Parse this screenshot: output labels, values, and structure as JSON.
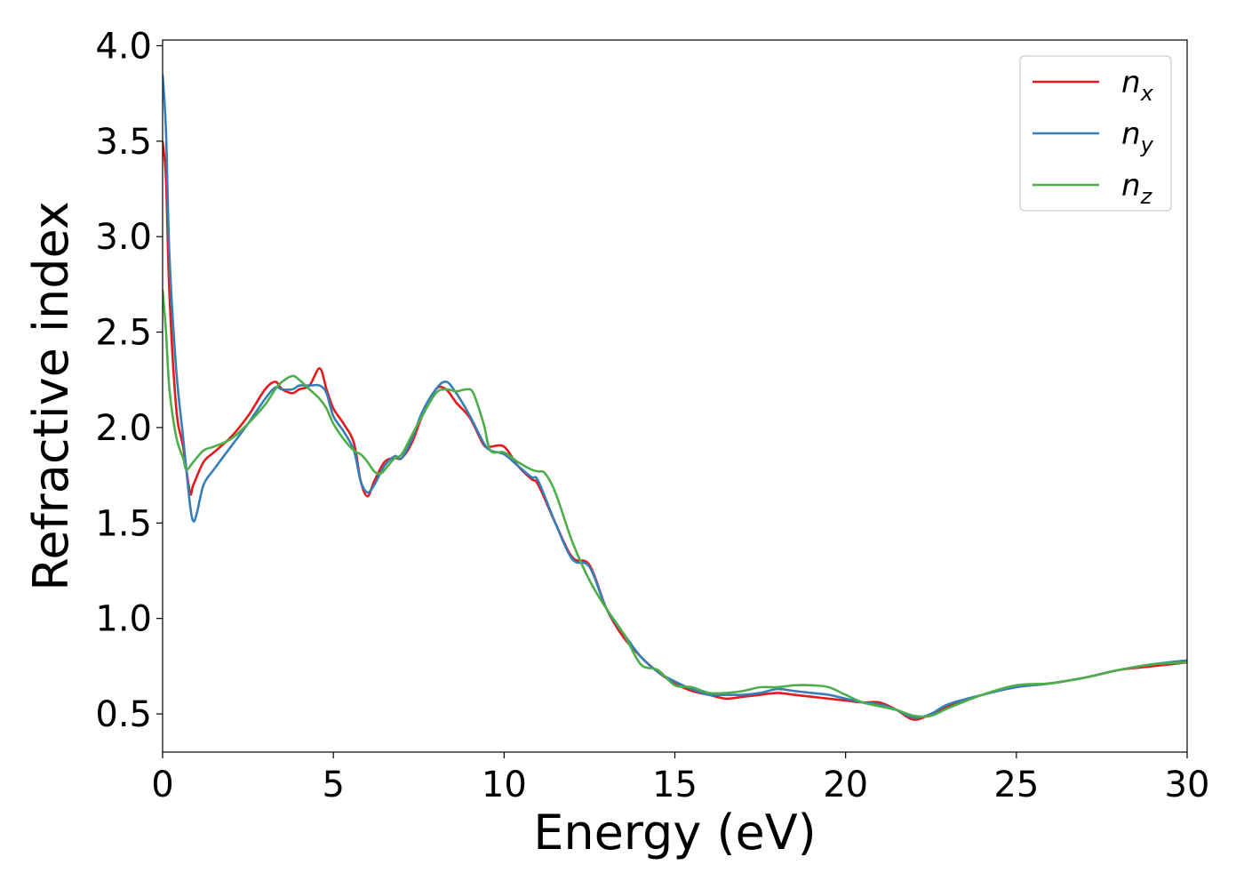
{
  "chart_data": {
    "type": "line",
    "xlabel": "Energy (eV)",
    "ylabel": "Refractive index",
    "xlim": [
      0,
      30
    ],
    "ylim": [
      0.3,
      4.03
    ],
    "xticks": [
      0,
      5,
      10,
      15,
      20,
      25,
      30
    ],
    "xtick_labels": [
      "0",
      "5",
      "10",
      "15",
      "20",
      "25",
      "30"
    ],
    "yticks": [
      0.5,
      1.0,
      1.5,
      2.0,
      2.5,
      3.0,
      3.5,
      4.0
    ],
    "ytick_labels": [
      "0.5",
      "1.0",
      "1.5",
      "2.0",
      "2.5",
      "3.0",
      "3.5",
      "4.0"
    ],
    "grid": false,
    "legend_position": "top-right",
    "series": [
      {
        "name": "n_x",
        "name_base": "n",
        "name_sub": "x",
        "color": "#e41a1c",
        "x": [
          0,
          0.1,
          0.2,
          0.4,
          0.6,
          0.8,
          0.9,
          1.2,
          1.5,
          2.0,
          2.5,
          3.0,
          3.3,
          3.5,
          3.8,
          4.0,
          4.3,
          4.6,
          4.8,
          5.0,
          5.3,
          5.6,
          5.8,
          6.0,
          6.2,
          6.5,
          6.8,
          7.0,
          7.3,
          7.6,
          8.0,
          8.3,
          8.6,
          9.0,
          9.4,
          9.6,
          10.0,
          10.4,
          10.8,
          11.0,
          11.5,
          12.0,
          12.5,
          13.0,
          13.5,
          14.0,
          14.5,
          15.0,
          15.5,
          16.0,
          16.5,
          17.0,
          17.5,
          18.0,
          18.5,
          19.0,
          19.5,
          20.0,
          20.5,
          21.0,
          21.5,
          22.0,
          22.5,
          23.0,
          24.0,
          25.0,
          26.0,
          27.0,
          28.0,
          29.0,
          30.0
        ],
        "values": [
          3.5,
          3.3,
          2.7,
          2.1,
          1.9,
          1.66,
          1.7,
          1.82,
          1.87,
          1.95,
          2.06,
          2.2,
          2.24,
          2.2,
          2.18,
          2.2,
          2.22,
          2.31,
          2.2,
          2.1,
          2.02,
          1.92,
          1.72,
          1.64,
          1.72,
          1.82,
          1.84,
          1.84,
          1.92,
          2.06,
          2.2,
          2.2,
          2.13,
          2.05,
          1.91,
          1.9,
          1.9,
          1.8,
          1.73,
          1.7,
          1.5,
          1.32,
          1.28,
          1.05,
          0.9,
          0.8,
          0.72,
          0.66,
          0.62,
          0.6,
          0.58,
          0.59,
          0.6,
          0.61,
          0.6,
          0.59,
          0.58,
          0.57,
          0.56,
          0.56,
          0.52,
          0.47,
          0.5,
          0.54,
          0.6,
          0.64,
          0.66,
          0.69,
          0.73,
          0.75,
          0.77
        ]
      },
      {
        "name": "n_y",
        "name_base": "n",
        "name_sub": "y",
        "color": "#377eb8",
        "x": [
          0,
          0.1,
          0.2,
          0.4,
          0.6,
          0.8,
          0.9,
          1.0,
          1.2,
          1.5,
          2.0,
          2.5,
          3.0,
          3.3,
          3.5,
          3.8,
          4.0,
          4.3,
          4.6,
          4.8,
          5.0,
          5.3,
          5.6,
          5.8,
          6.0,
          6.2,
          6.5,
          6.8,
          7.0,
          7.3,
          7.6,
          8.0,
          8.3,
          8.6,
          9.0,
          9.4,
          9.6,
          10.0,
          10.4,
          10.8,
          11.0,
          11.5,
          12.0,
          12.5,
          13.0,
          13.5,
          14.0,
          14.5,
          15.0,
          15.5,
          16.0,
          16.5,
          17.0,
          17.5,
          18.0,
          18.5,
          19.0,
          19.5,
          20.0,
          20.5,
          21.0,
          21.5,
          22.0,
          22.5,
          23.0,
          24.0,
          25.0,
          26.0,
          27.0,
          28.0,
          29.0,
          30.0
        ],
        "values": [
          3.85,
          3.55,
          2.9,
          2.3,
          1.95,
          1.6,
          1.51,
          1.55,
          1.7,
          1.78,
          1.9,
          2.02,
          2.15,
          2.21,
          2.2,
          2.2,
          2.22,
          2.22,
          2.22,
          2.18,
          2.06,
          1.98,
          1.88,
          1.72,
          1.66,
          1.7,
          1.8,
          1.85,
          1.84,
          1.94,
          2.08,
          2.2,
          2.24,
          2.18,
          2.06,
          1.92,
          1.88,
          1.86,
          1.8,
          1.74,
          1.72,
          1.5,
          1.31,
          1.27,
          1.05,
          0.92,
          0.8,
          0.72,
          0.67,
          0.63,
          0.6,
          0.6,
          0.6,
          0.61,
          0.63,
          0.62,
          0.61,
          0.6,
          0.58,
          0.56,
          0.55,
          0.52,
          0.48,
          0.5,
          0.55,
          0.6,
          0.64,
          0.66,
          0.69,
          0.73,
          0.76,
          0.78
        ]
      },
      {
        "name": "n_z",
        "name_base": "n",
        "name_sub": "z",
        "color": "#4daf4a",
        "x": [
          0,
          0.1,
          0.2,
          0.4,
          0.6,
          0.7,
          0.9,
          1.2,
          1.5,
          2.0,
          2.5,
          3.0,
          3.3,
          3.5,
          3.8,
          4.0,
          4.3,
          4.6,
          4.8,
          5.0,
          5.3,
          5.6,
          5.8,
          6.0,
          6.2,
          6.4,
          6.6,
          6.8,
          7.0,
          7.3,
          7.6,
          8.0,
          8.3,
          8.6,
          8.9,
          9.1,
          9.4,
          9.6,
          10.0,
          10.4,
          10.8,
          11.0,
          11.2,
          11.5,
          12.0,
          12.5,
          13.0,
          13.5,
          14.0,
          14.5,
          15.0,
          15.5,
          16.0,
          16.5,
          17.0,
          17.5,
          18.0,
          18.5,
          19.0,
          19.5,
          20.0,
          20.5,
          21.0,
          21.5,
          22.0,
          22.5,
          23.0,
          24.0,
          25.0,
          26.0,
          27.0,
          28.0,
          29.0,
          30.0
        ],
        "values": [
          2.72,
          2.5,
          2.2,
          1.95,
          1.84,
          1.78,
          1.82,
          1.88,
          1.9,
          1.94,
          2.02,
          2.12,
          2.2,
          2.24,
          2.27,
          2.25,
          2.2,
          2.15,
          2.1,
          2.02,
          1.94,
          1.88,
          1.86,
          1.82,
          1.77,
          1.76,
          1.8,
          1.84,
          1.86,
          1.96,
          2.06,
          2.18,
          2.2,
          2.19,
          2.2,
          2.18,
          2.02,
          1.88,
          1.87,
          1.82,
          1.78,
          1.77,
          1.76,
          1.66,
          1.4,
          1.2,
          1.05,
          0.92,
          0.76,
          0.73,
          0.65,
          0.64,
          0.61,
          0.61,
          0.62,
          0.64,
          0.64,
          0.65,
          0.65,
          0.64,
          0.6,
          0.56,
          0.54,
          0.52,
          0.49,
          0.49,
          0.53,
          0.6,
          0.65,
          0.66,
          0.69,
          0.73,
          0.76,
          0.77
        ]
      }
    ]
  }
}
